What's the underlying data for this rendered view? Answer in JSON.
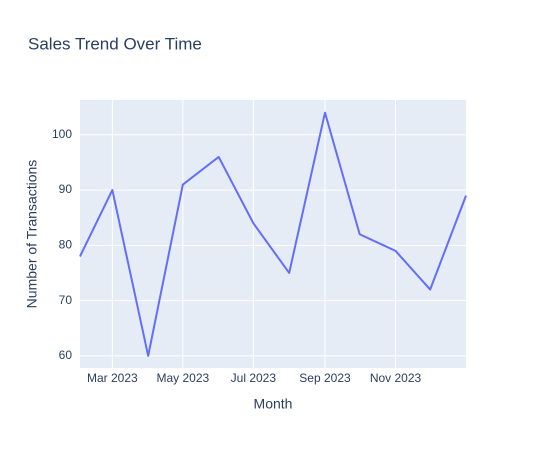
{
  "chart_data": {
    "type": "line",
    "title": "Sales Trend Over Time",
    "x_label": "Month",
    "y_label": "Number of Transactions",
    "x": [
      "2023-02",
      "2023-03",
      "2023-04",
      "2023-05",
      "2023-06",
      "2023-07",
      "2023-08",
      "2023-09",
      "2023-10",
      "2023-11",
      "2023-12",
      "2024-01"
    ],
    "series": [
      {
        "name": "Transactions",
        "color": "#636efa",
        "values": [
          78,
          90,
          60,
          91,
          96,
          84,
          75,
          104,
          82,
          79,
          72,
          89
        ]
      }
    ],
    "xlim": [
      "2023-02",
      "2024-01"
    ],
    "xticks": [
      {
        "value": "2023-03",
        "label": "Mar 2023"
      },
      {
        "value": "2023-05",
        "label": "May 2023"
      },
      {
        "value": "2023-07",
        "label": "Jul 2023"
      },
      {
        "value": "2023-09",
        "label": "Sep 2023"
      },
      {
        "value": "2023-11",
        "label": "Nov 2023"
      }
    ],
    "ylim": [
      57.8,
      106.3
    ],
    "yticks": [
      60,
      70,
      80,
      90,
      100
    ],
    "grid": true
  }
}
